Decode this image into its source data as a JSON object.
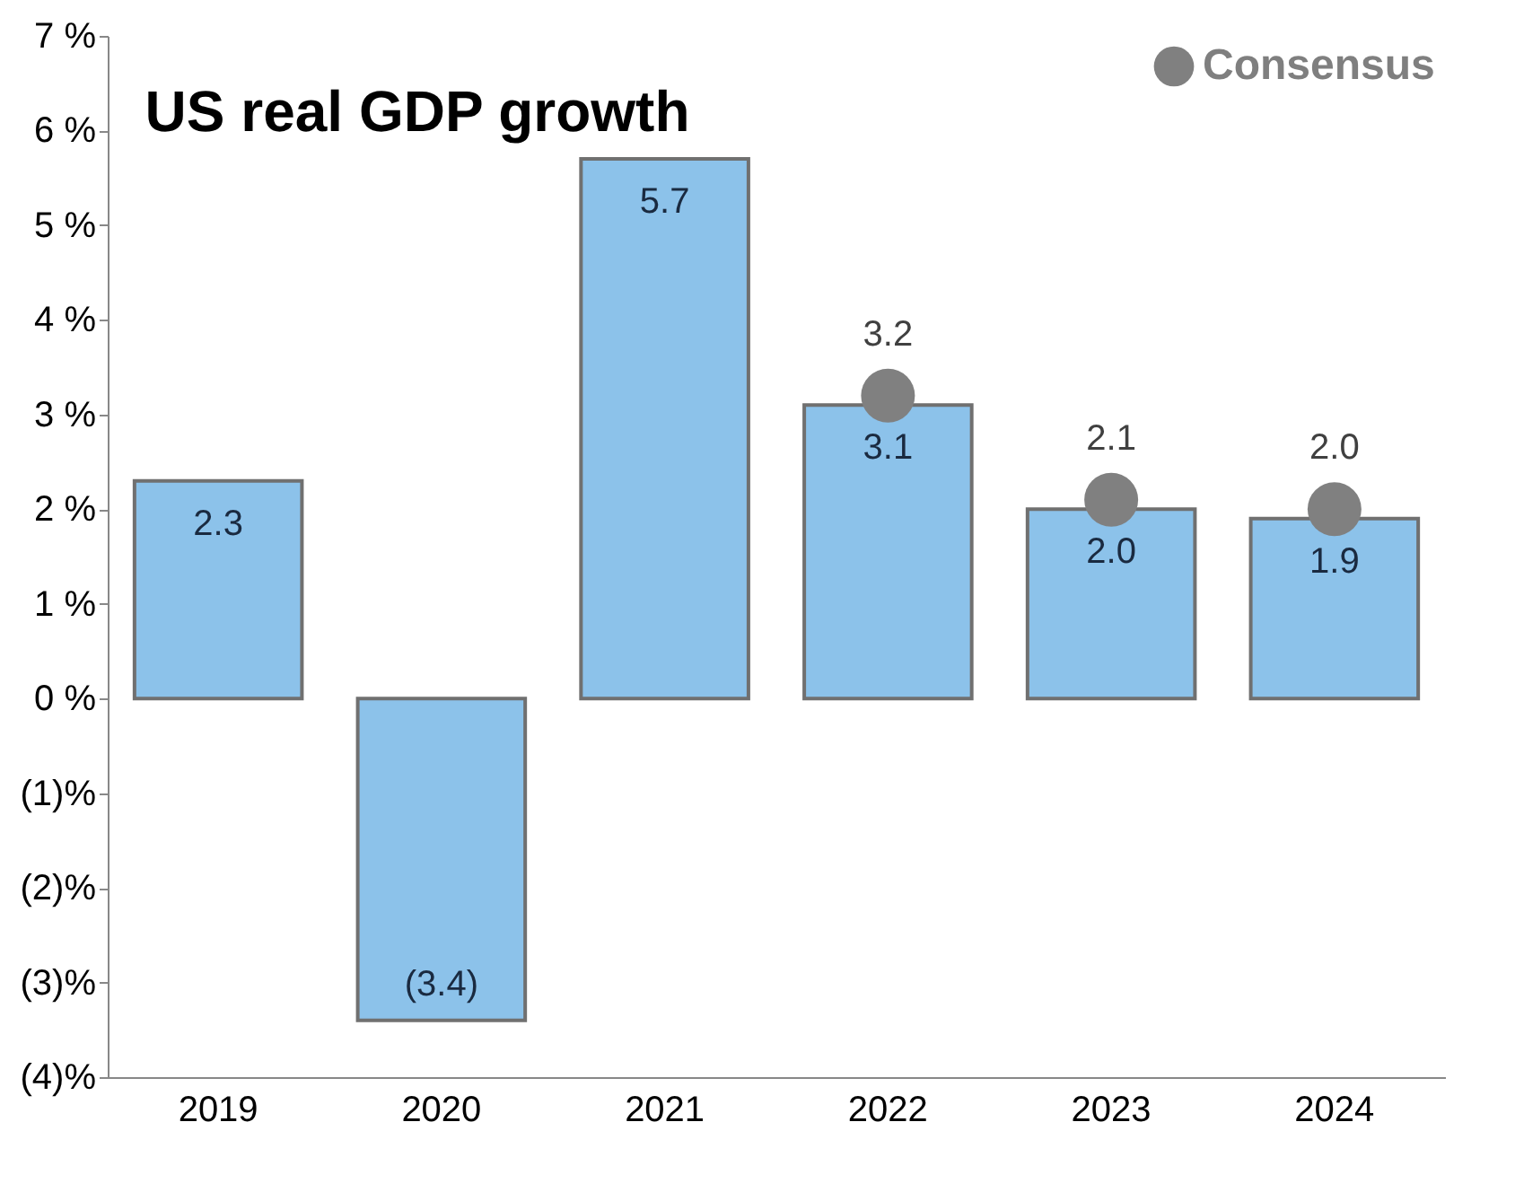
{
  "chart_data": {
    "type": "bar",
    "title": "US real GDP growth",
    "categories": [
      "2019",
      "2020",
      "2021",
      "2022",
      "2023",
      "2024"
    ],
    "ylim": [
      -4,
      7
    ],
    "yticks": [
      {
        "value": -4,
        "label": "(4)%"
      },
      {
        "value": -3,
        "label": "(3)%"
      },
      {
        "value": -2,
        "label": "(2)%"
      },
      {
        "value": -1,
        "label": "(1)%"
      },
      {
        "value": 0,
        "label": "0 %"
      },
      {
        "value": 1,
        "label": "1 %"
      },
      {
        "value": 2,
        "label": "2 %"
      },
      {
        "value": 3,
        "label": "3 %"
      },
      {
        "value": 4,
        "label": "4 %"
      },
      {
        "value": 5,
        "label": "5 %"
      },
      {
        "value": 6,
        "label": "6 %"
      },
      {
        "value": 7,
        "label": "7 %"
      }
    ],
    "series": [
      {
        "color": "#8cc2ea",
        "values": [
          2.3,
          -3.4,
          5.7,
          3.1,
          2.0,
          1.9
        ],
        "value_labels": [
          "2.3",
          "(3.4)",
          "5.7",
          "3.1",
          "2.0",
          "1.9"
        ]
      },
      {
        "type": "scatter",
        "name": "Consensus",
        "color": "#808080",
        "values": [
          null,
          null,
          null,
          3.2,
          2.1,
          2.0
        ],
        "value_labels": [
          null,
          null,
          null,
          "3.2",
          "2.1",
          "2.0"
        ]
      }
    ],
    "marker": "circle",
    "legend": "top right",
    "grid": false
  }
}
